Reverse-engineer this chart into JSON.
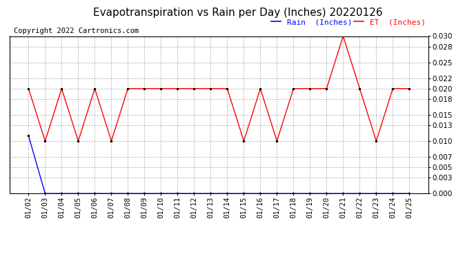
{
  "title": "Evapotranspiration vs Rain per Day (Inches) 20220126",
  "copyright": "Copyright 2022 Cartronics.com",
  "legend_rain": "Rain  (Inches)",
  "legend_et": "ET  (Inches)",
  "x_labels": [
    "01/02",
    "01/03",
    "01/04",
    "01/05",
    "01/06",
    "01/07",
    "01/08",
    "01/09",
    "01/10",
    "01/11",
    "01/12",
    "01/13",
    "01/14",
    "01/15",
    "01/16",
    "01/17",
    "01/18",
    "01/19",
    "01/20",
    "01/21",
    "01/22",
    "01/23",
    "01/24",
    "01/25"
  ],
  "et_values": [
    0.02,
    0.01,
    0.02,
    0.01,
    0.02,
    0.01,
    0.02,
    0.02,
    0.02,
    0.02,
    0.02,
    0.02,
    0.02,
    0.01,
    0.02,
    0.01,
    0.02,
    0.02,
    0.02,
    0.03,
    0.02,
    0.01,
    0.02,
    0.02
  ],
  "rain_values": [
    0.011,
    0.0,
    0.0,
    0.0,
    0.0,
    0.0,
    0.0,
    0.0,
    0.0,
    0.0,
    0.0,
    0.0,
    0.0,
    0.0,
    0.0,
    0.0,
    0.0,
    0.0,
    0.0,
    0.0,
    0.0,
    0.0,
    0.0,
    0.0
  ],
  "et_color": "red",
  "rain_color": "blue",
  "marker_color": "black",
  "background_color": "white",
  "grid_color": "#aaaaaa",
  "ylim": [
    0.0,
    0.03
  ],
  "yticks": [
    0.0,
    0.003,
    0.005,
    0.007,
    0.01,
    0.013,
    0.015,
    0.018,
    0.02,
    0.022,
    0.025,
    0.028,
    0.03
  ],
  "title_fontsize": 11,
  "copyright_fontsize": 7.5,
  "legend_fontsize": 8,
  "tick_fontsize": 7.5
}
